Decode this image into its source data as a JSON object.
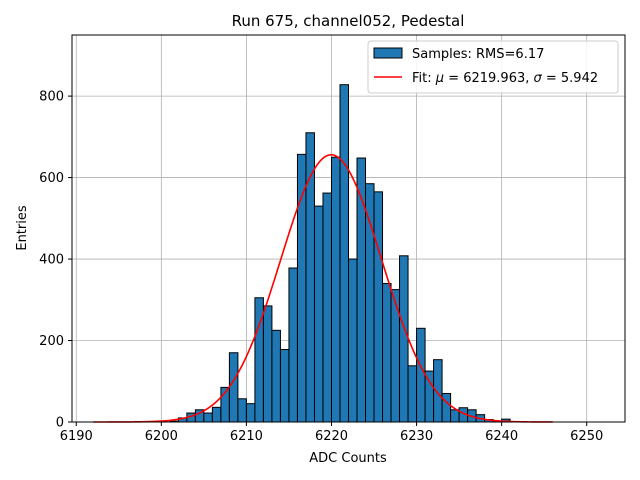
{
  "chart_data": {
    "type": "bar",
    "title": "Run 675, channel052, Pedestal",
    "xlabel": "ADC Counts",
    "ylabel": "Entries",
    "xlim": [
      6189.5,
      6254.5
    ],
    "ylim": [
      0,
      950
    ],
    "grid": true,
    "bin_width": 1,
    "x_ticks": [
      6190,
      6200,
      6210,
      6220,
      6230,
      6240,
      6250
    ],
    "y_ticks": [
      0,
      200,
      400,
      600,
      800
    ],
    "colors": {
      "bar_fill": "#1f77b4",
      "bar_edge": "#000000",
      "fit_line": "#ff0000",
      "grid": "#b0b0b0"
    },
    "series": [
      {
        "name": "Samples: RMS=6.17",
        "kind": "histogram",
        "bin_starts": [
          6201,
          6202,
          6203,
          6204,
          6205,
          6206,
          6207,
          6208,
          6209,
          6210,
          6211,
          6212,
          6213,
          6214,
          6215,
          6216,
          6217,
          6218,
          6219,
          6220,
          6221,
          6222,
          6223,
          6224,
          6225,
          6226,
          6227,
          6228,
          6229,
          6230,
          6231,
          6232,
          6233,
          6234,
          6235,
          6236,
          6237,
          6238,
          6239,
          6240
        ],
        "values": [
          2,
          10,
          22,
          30,
          22,
          36,
          85,
          170,
          57,
          45,
          305,
          285,
          225,
          178,
          378,
          657,
          710,
          530,
          562,
          650,
          828,
          400,
          648,
          585,
          565,
          340,
          325,
          408,
          138,
          230,
          125,
          153,
          70,
          30,
          35,
          30,
          18,
          6,
          2,
          7
        ]
      },
      {
        "name": "Fit",
        "kind": "gaussian",
        "legend_label": "Fit: μ = 6219.963, σ = 5.942",
        "mu": 6219.963,
        "sigma": 5.942,
        "amplitude": 656,
        "x_range": [
          6192,
          6246
        ]
      }
    ],
    "legend_position": "top-right",
    "legend": {
      "hist_label": "Samples: RMS=6.17",
      "fit_prefix": "Fit: ",
      "mu_symbol": "μ",
      "mu_value": " = 6219.963, ",
      "sigma_symbol": "σ",
      "sigma_value": " = 5.942"
    }
  }
}
